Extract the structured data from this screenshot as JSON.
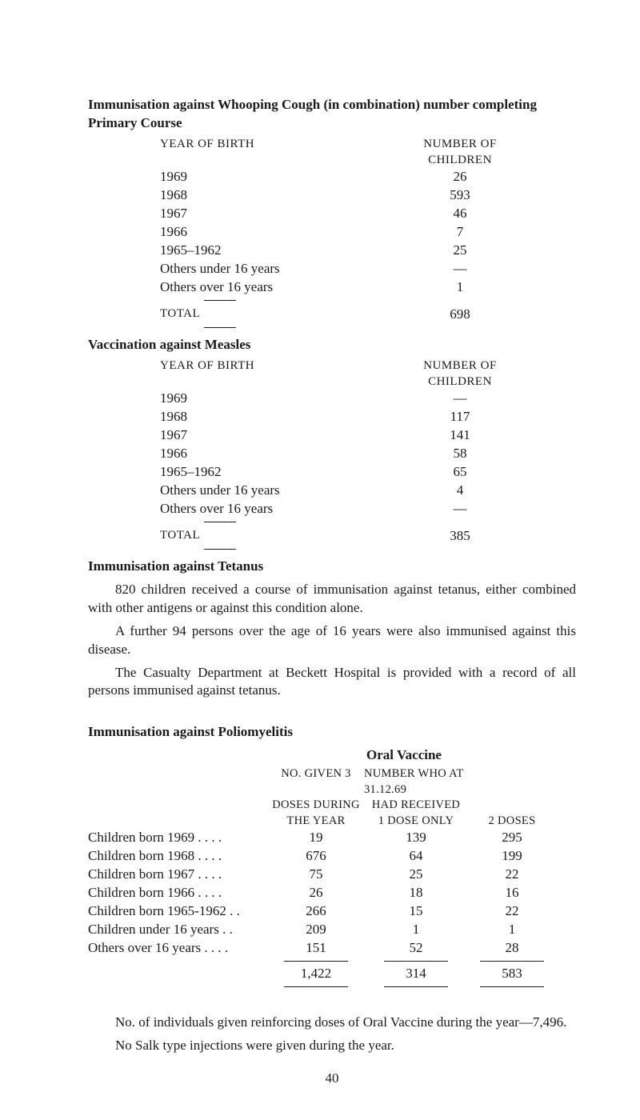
{
  "section1": {
    "title": "Immunisation against Whooping Cough (in combination) number completing Primary Course",
    "header_left": "YEAR OF BIRTH",
    "header_right": "NUMBER OF CHILDREN",
    "rows": [
      {
        "label": "1969",
        "value": "26"
      },
      {
        "label": "1968",
        "value": "593"
      },
      {
        "label": "1967",
        "value": "46"
      },
      {
        "label": "1966",
        "value": "7"
      },
      {
        "label": "1965–1962",
        "value": "25"
      },
      {
        "label": "Others under 16 years",
        "value": "—"
      },
      {
        "label": "Others over 16 years",
        "value": "1"
      }
    ],
    "total_label": "TOTAL",
    "total_value": "698"
  },
  "section2": {
    "title": "Vaccination against Measles",
    "header_left": "YEAR OF BIRTH",
    "header_right": "NUMBER OF CHILDREN",
    "rows": [
      {
        "label": "1969",
        "value": "—"
      },
      {
        "label": "1968",
        "value": "117"
      },
      {
        "label": "1967",
        "value": "141"
      },
      {
        "label": "1966",
        "value": "58"
      },
      {
        "label": "1965–1962",
        "value": "65"
      },
      {
        "label": "Others under 16 years",
        "value": "4"
      },
      {
        "label": "Others over 16 years",
        "value": "—"
      }
    ],
    "total_label": "TOTAL",
    "total_value": "385"
  },
  "section3": {
    "title": "Immunisation against Tetanus",
    "para1": "820 children received a course of immunisation against tetanus, either combined with other antigens or against this condition alone.",
    "para2": "A further 94 persons over the age of 16 years were also immunised against this disease.",
    "para3": "The Casualty Department at Beckett Hospital is provided with a record of all persons immunised against tetanus."
  },
  "section4": {
    "title": "Immunisation against Poliomyelitis",
    "oral_title": "Oral Vaccine",
    "head_a1": "NO. GIVEN 3",
    "head_a2": "DOSES DURING",
    "head_a3": "THE YEAR",
    "head_b1": "NUMBER WHO AT 31.12.69",
    "head_b2": "HAD RECEIVED",
    "head_c1": "1 DOSE ONLY",
    "head_c2": "2 DOSES",
    "rows": [
      {
        "label": "Children born 1969 . .   . .",
        "a": "19",
        "b": "139",
        "c": "295"
      },
      {
        "label": "Children born 1968 . .   . .",
        "a": "676",
        "b": "64",
        "c": "199"
      },
      {
        "label": "Children born 1967 . .   . .",
        "a": "75",
        "b": "25",
        "c": "22"
      },
      {
        "label": "Children born 1966 . .   . .",
        "a": "26",
        "b": "18",
        "c": "16"
      },
      {
        "label": "Children born 1965-1962 . .",
        "a": "266",
        "b": "15",
        "c": "22"
      },
      {
        "label": "Children under 16 years  . .",
        "a": "209",
        "b": "1",
        "c": "1"
      },
      {
        "label": "Others over 16 years . .   . .",
        "a": "151",
        "b": "52",
        "c": "28"
      }
    ],
    "totals": {
      "a": "1,422",
      "b": "314",
      "c": "583"
    }
  },
  "footer": {
    "para1": "No. of individuals given reinforcing doses of Oral Vaccine during the year—7,496.",
    "para2": "No Salk type injections were given during the year."
  },
  "page_number": "40"
}
